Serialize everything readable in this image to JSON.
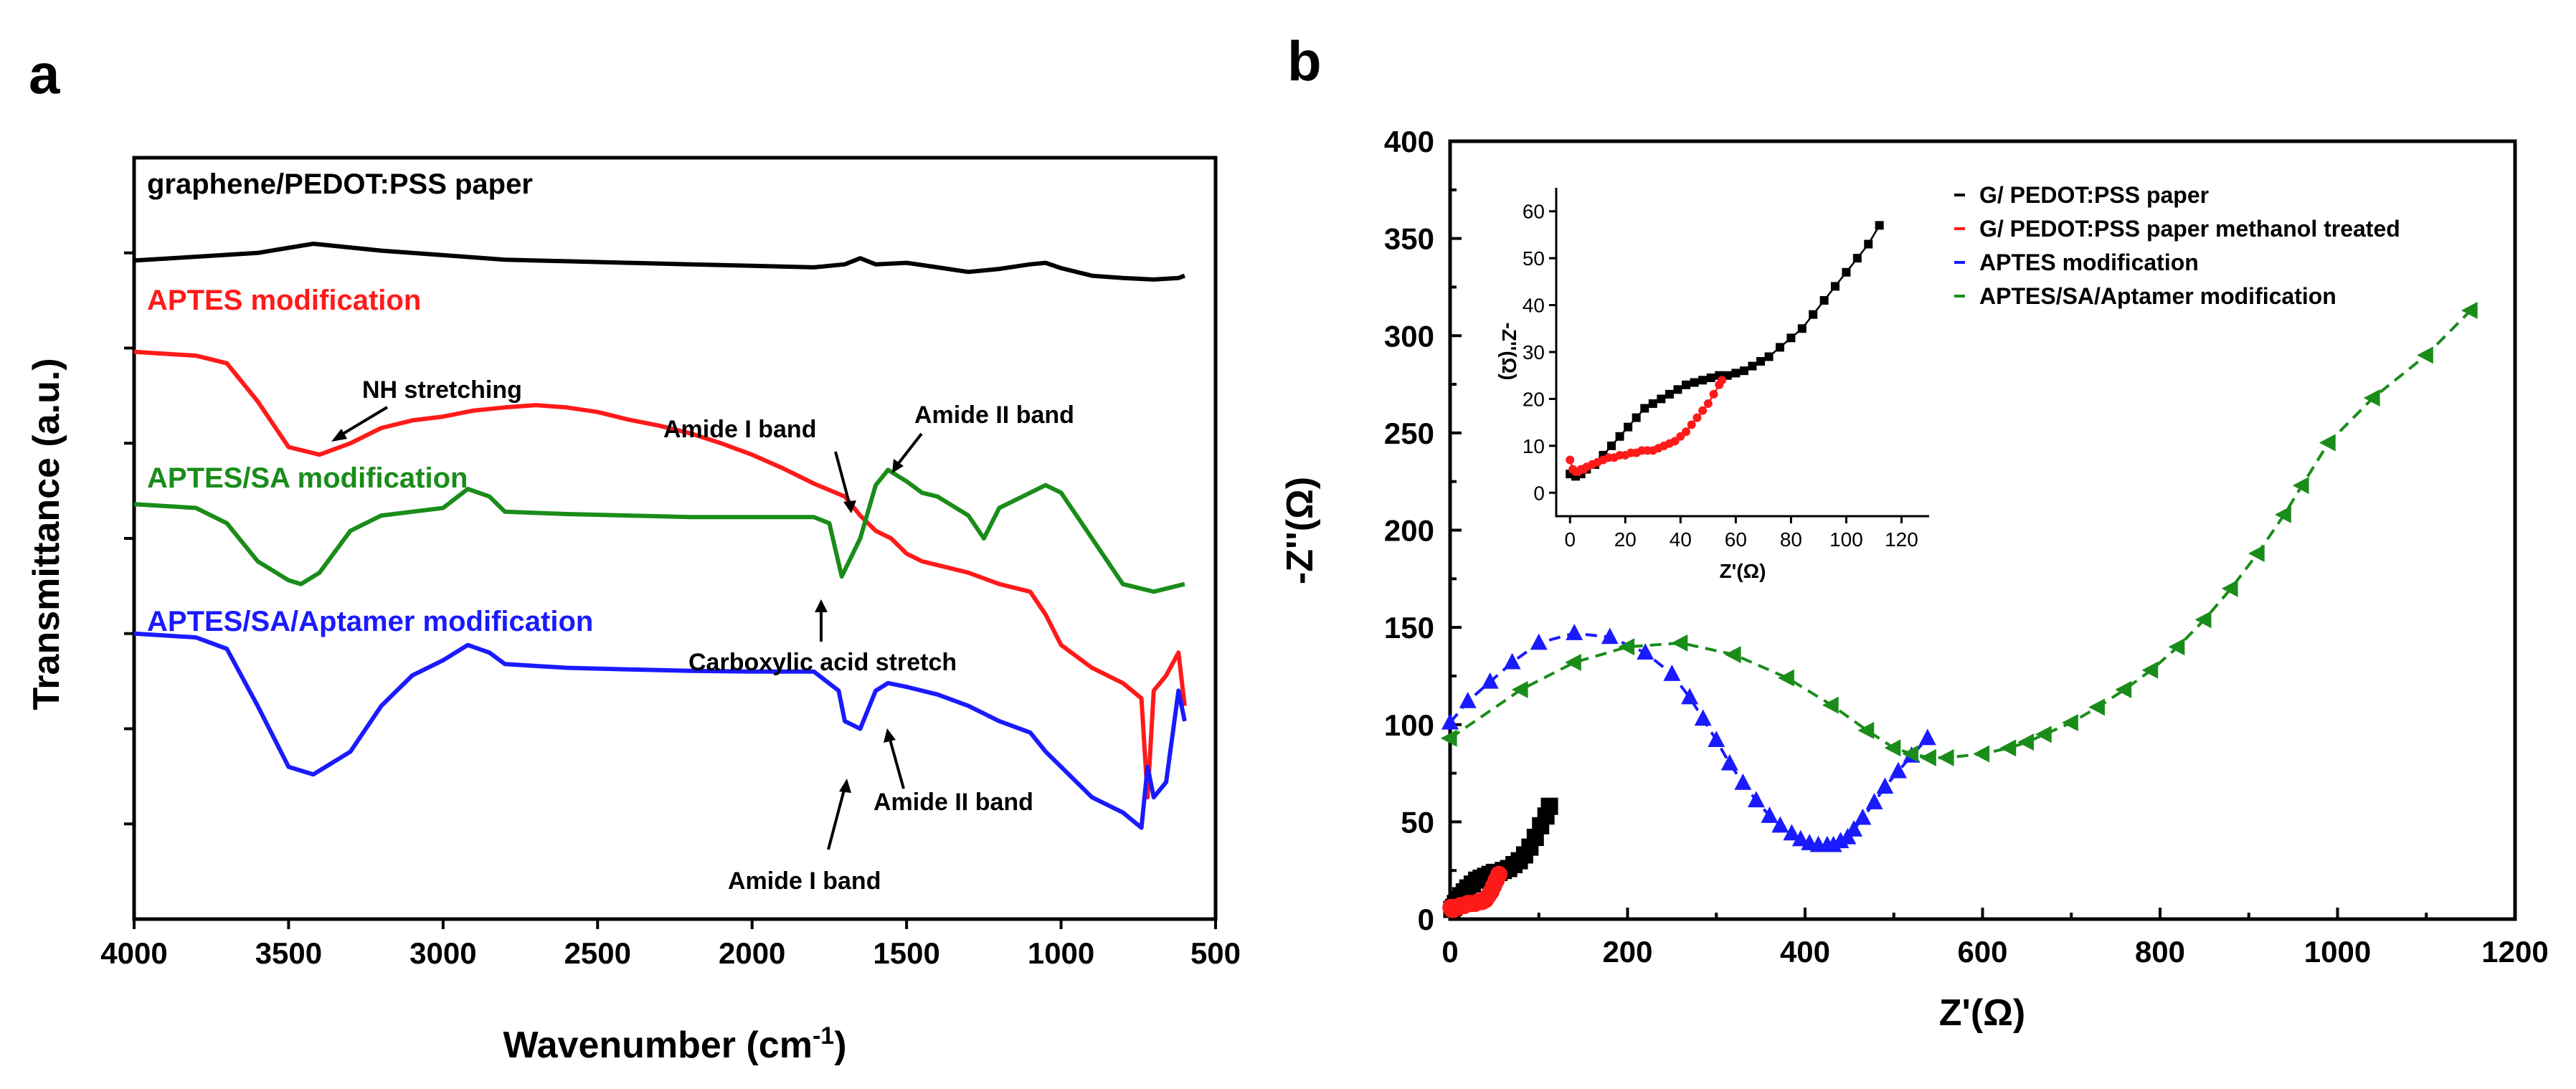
{
  "panels": {
    "a_label": "a",
    "b_label": "b"
  },
  "colors": {
    "black": "#000000",
    "red": "#ff1a1a",
    "green": "#1a8c1a",
    "blue": "#1a1aff"
  },
  "chart_data": [
    {
      "id": "ftir",
      "type": "line",
      "title": "",
      "xlabel": "Wavenumber (cm⁻¹)",
      "ylabel": "Transmittance (a.u.)",
      "xlim": [
        4000,
        500
      ],
      "x_ticks": [
        4000,
        3500,
        3000,
        2500,
        2000,
        1500,
        1000,
        500
      ],
      "y_ticks_shown": false,
      "series": [
        {
          "name": "graphene/PEDOT:PSS paper",
          "color": "#000000",
          "x": [
            4000,
            3800,
            3600,
            3420,
            3200,
            3000,
            2800,
            2600,
            2400,
            2200,
            2000,
            1800,
            1700,
            1650,
            1600,
            1500,
            1400,
            1300,
            1200,
            1100,
            1050,
            1000,
            900,
            800,
            700,
            620,
            600
          ],
          "y": [
            0.865,
            0.87,
            0.875,
            0.887,
            0.878,
            0.872,
            0.866,
            0.864,
            0.862,
            0.86,
            0.858,
            0.856,
            0.86,
            0.868,
            0.86,
            0.862,
            0.856,
            0.85,
            0.854,
            0.86,
            0.862,
            0.855,
            0.845,
            0.842,
            0.84,
            0.842,
            0.845
          ]
        },
        {
          "name": "APTES modification",
          "color": "#ff1a1a",
          "x": [
            4000,
            3800,
            3700,
            3600,
            3500,
            3400,
            3300,
            3200,
            3100,
            3000,
            2900,
            2800,
            2700,
            2600,
            2500,
            2400,
            2300,
            2200,
            2100,
            2000,
            1900,
            1800,
            1700,
            1650,
            1600,
            1550,
            1500,
            1450,
            1400,
            1300,
            1200,
            1100,
            1050,
            1000,
            900,
            800,
            740,
            720,
            700,
            660,
            620,
            600
          ],
          "y": [
            0.745,
            0.74,
            0.73,
            0.68,
            0.62,
            0.61,
            0.625,
            0.645,
            0.655,
            0.66,
            0.668,
            0.672,
            0.675,
            0.672,
            0.666,
            0.656,
            0.648,
            0.638,
            0.625,
            0.61,
            0.592,
            0.572,
            0.555,
            0.53,
            0.51,
            0.5,
            0.48,
            0.47,
            0.465,
            0.455,
            0.44,
            0.43,
            0.4,
            0.36,
            0.33,
            0.31,
            0.29,
            0.16,
            0.3,
            0.32,
            0.35,
            0.28
          ]
        },
        {
          "name": "APTES/SA modification",
          "color": "#1a8c1a",
          "x": [
            4000,
            3800,
            3700,
            3600,
            3500,
            3460,
            3400,
            3300,
            3200,
            3100,
            3000,
            2920,
            2850,
            2800,
            2600,
            2400,
            2200,
            2000,
            1800,
            1750,
            1710,
            1650,
            1600,
            1560,
            1500,
            1450,
            1400,
            1300,
            1250,
            1200,
            1100,
            1050,
            1000,
            900,
            800,
            700,
            600
          ],
          "y": [
            0.545,
            0.54,
            0.52,
            0.47,
            0.445,
            0.44,
            0.455,
            0.51,
            0.53,
            0.535,
            0.54,
            0.565,
            0.555,
            0.535,
            0.532,
            0.53,
            0.528,
            0.528,
            0.528,
            0.52,
            0.45,
            0.5,
            0.57,
            0.59,
            0.575,
            0.56,
            0.555,
            0.53,
            0.5,
            0.54,
            0.56,
            0.57,
            0.56,
            0.5,
            0.44,
            0.43,
            0.44
          ]
        },
        {
          "name": "APTES/SA/Aptamer modification",
          "color": "#1a1aff",
          "x": [
            4000,
            3800,
            3700,
            3600,
            3500,
            3420,
            3300,
            3200,
            3100,
            3000,
            2920,
            2850,
            2800,
            2600,
            2400,
            2200,
            2000,
            1800,
            1720,
            1700,
            1650,
            1600,
            1560,
            1500,
            1450,
            1400,
            1300,
            1200,
            1100,
            1050,
            1000,
            900,
            800,
            740,
            720,
            700,
            660,
            620,
            600
          ],
          "y": [
            0.375,
            0.37,
            0.355,
            0.28,
            0.2,
            0.19,
            0.22,
            0.28,
            0.32,
            0.34,
            0.36,
            0.35,
            0.335,
            0.33,
            0.328,
            0.326,
            0.325,
            0.325,
            0.3,
            0.26,
            0.25,
            0.3,
            0.31,
            0.305,
            0.3,
            0.295,
            0.28,
            0.26,
            0.245,
            0.22,
            0.2,
            0.16,
            0.14,
            0.12,
            0.2,
            0.16,
            0.18,
            0.3,
            0.26
          ]
        }
      ],
      "series_labels": [
        {
          "text": "graphene/PEDOT:PSS paper",
          "series": 0
        },
        {
          "text": "APTES modification",
          "series": 1
        },
        {
          "text": "APTES/SA modification",
          "series": 2
        },
        {
          "text": "APTES/SA/Aptamer modification",
          "series": 3
        }
      ],
      "annotations": [
        {
          "text": "NH stretching"
        },
        {
          "text": "Amide I band"
        },
        {
          "text": "Amide II band"
        },
        {
          "text": "Carboxylic acid stretch"
        },
        {
          "text": "Amide II band"
        },
        {
          "text": "Amide I band"
        }
      ]
    },
    {
      "id": "eis",
      "type": "scatter",
      "title": "",
      "xlabel": "Z'(Ω)",
      "ylabel": "-Z''(Ω)",
      "xlim": [
        0,
        1200
      ],
      "ylim": [
        0,
        400
      ],
      "x_ticks": [
        0,
        200,
        400,
        600,
        800,
        1000,
        1200
      ],
      "y_ticks": [
        0,
        50,
        100,
        150,
        200,
        250,
        300,
        350,
        400
      ],
      "legend_position": "top-right",
      "series": [
        {
          "name": "G/ PEDOT:PSS paper",
          "color": "#000000",
          "marker": "square",
          "x": [
            2,
            4,
            6,
            9,
            12,
            16,
            20,
            25,
            30,
            35,
            40,
            45,
            50,
            55,
            60,
            66,
            72,
            78,
            84,
            90,
            96,
            102,
            108,
            112
          ],
          "y": [
            5,
            6,
            8,
            10,
            12,
            14,
            16,
            18,
            20,
            21,
            22,
            23,
            24,
            24,
            25,
            26,
            28,
            30,
            33,
            37,
            42,
            48,
            53,
            58
          ]
        },
        {
          "name": "G/ PEDOT:PSS paper methanol treated",
          "color": "#ff1a1a",
          "marker": "circle",
          "x": [
            1,
            2,
            4,
            6,
            9,
            12,
            16,
            20,
            24,
            28,
            32,
            36,
            40,
            43,
            46,
            49,
            52,
            55
          ],
          "y": [
            6,
            5,
            5,
            6,
            6,
            7,
            7,
            8,
            8,
            8,
            9,
            9,
            10,
            12,
            14,
            17,
            20,
            23
          ]
        },
        {
          "name": "APTES modification",
          "color": "#1a1aff",
          "marker": "triangle-up",
          "x": [
            0,
            20,
            45,
            70,
            100,
            140,
            180,
            220,
            250,
            270,
            285,
            300,
            315,
            330,
            345,
            360,
            372,
            385,
            395,
            405,
            415,
            425,
            432,
            440,
            448,
            455,
            465,
            478,
            490,
            505,
            520,
            538
          ],
          "y": [
            101,
            112,
            122,
            132,
            142,
            147,
            145,
            137,
            126,
            114,
            103,
            92,
            80,
            70,
            61,
            53,
            48,
            44,
            41,
            39,
            38,
            38,
            38,
            40,
            42,
            46,
            52,
            60,
            68,
            76,
            84,
            93
          ]
        },
        {
          "name": "APTES/SA/Aptamer modification",
          "color": "#1a8c1a",
          "marker": "triangle-left",
          "x": [
            0,
            80,
            140,
            200,
            260,
            320,
            380,
            430,
            470,
            500,
            520,
            540,
            560,
            600,
            630,
            650,
            670,
            700,
            730,
            760,
            790,
            820,
            850,
            880,
            910,
            940,
            960,
            990,
            1040,
            1100,
            1150
          ],
          "y": [
            93,
            118,
            132,
            140,
            142,
            136,
            124,
            110,
            97,
            88,
            85,
            83,
            83,
            85,
            88,
            91,
            95,
            101,
            109,
            118,
            128,
            140,
            154,
            170,
            188,
            208,
            223,
            245,
            268,
            290,
            313
          ]
        }
      ]
    },
    {
      "id": "eis-inset",
      "type": "line",
      "title": "",
      "xlabel": "Z'(Ω)",
      "ylabel": "-Z''(Ω)",
      "xlim": [
        -5,
        130
      ],
      "ylim": [
        -5,
        65
      ],
      "x_ticks": [
        0,
        20,
        40,
        60,
        80,
        100,
        120
      ],
      "y_ticks": [
        0,
        10,
        20,
        30,
        40,
        50,
        60
      ],
      "series": [
        {
          "name": "G/ PEDOT:PSS paper",
          "color": "#000000",
          "marker": "square",
          "x": [
            0,
            2,
            4,
            6,
            9,
            12,
            15,
            18,
            21,
            24,
            27,
            30,
            33,
            36,
            39,
            42,
            45,
            48,
            51,
            54,
            57,
            60,
            63,
            66,
            69,
            72,
            76,
            80,
            84,
            88,
            92,
            96,
            100,
            104,
            108,
            112
          ],
          "y": [
            4,
            3.5,
            4,
            5,
            6,
            8,
            10,
            12,
            14,
            16,
            18,
            19,
            20,
            21,
            22,
            23,
            23.5,
            24,
            24.5,
            25,
            25,
            25.5,
            26,
            27,
            28,
            29,
            31,
            33,
            35,
            38,
            41,
            44,
            47,
            50,
            53,
            57
          ]
        },
        {
          "name": "G/ PEDOT:PSS paper methanol treated",
          "color": "#ff1a1a",
          "marker": "circle",
          "x": [
            0,
            1,
            2,
            3,
            4,
            5,
            6,
            8,
            10,
            12,
            14,
            16,
            18,
            20,
            22,
            24,
            26,
            28,
            30,
            32,
            34,
            36,
            38,
            40,
            42,
            44,
            46,
            48,
            50,
            52,
            54,
            55
          ],
          "y": [
            7,
            5,
            4.5,
            4.5,
            5,
            5,
            5.5,
            6,
            6.5,
            7,
            7.5,
            7.5,
            8,
            8,
            8.5,
            8.5,
            9,
            9,
            9,
            9.5,
            10,
            10.5,
            11,
            12,
            13,
            14.5,
            16,
            17.5,
            19,
            21,
            23,
            24
          ]
        }
      ]
    }
  ]
}
